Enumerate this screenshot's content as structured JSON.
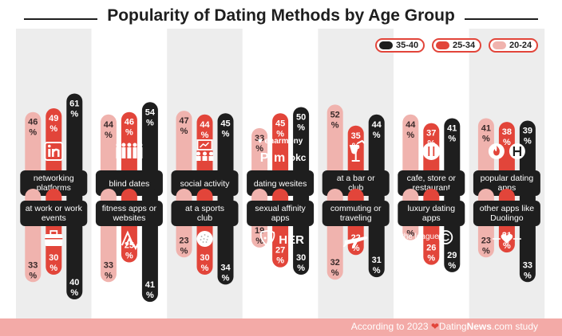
{
  "title": "Popularity of Dating Methods by Age Group",
  "legend": [
    {
      "label": "35-40",
      "color": "#1e1e1e"
    },
    {
      "label": "25-34",
      "color": "#e2453a"
    },
    {
      "label": "20-24",
      "color": "#f0b3ae"
    }
  ],
  "footer": {
    "prefix": "According to 2023",
    "brand_main": "Dating",
    "brand_bold": "News",
    "brand_suffix": ".com",
    "suffix": "study"
  },
  "chart_data": {
    "type": "bar",
    "series_names": [
      "20-24",
      "25-34",
      "35-40"
    ],
    "colors": {
      "20-24": "#f0b3ae",
      "25-34": "#e2453a",
      "35-40": "#1e1e1e"
    },
    "top_row": [
      {
        "category": "networking platforms",
        "values": [
          46,
          49,
          61
        ],
        "icons": [
          "linkedin-icon"
        ]
      },
      {
        "category": "blind dates",
        "values": [
          44,
          46,
          54
        ],
        "icons": [
          "group-people-icon"
        ]
      },
      {
        "category": "social activity",
        "values": [
          47,
          44,
          45
        ],
        "icons": [
          "presentation-icon"
        ]
      },
      {
        "category": "dating wesites",
        "values": [
          33,
          45,
          50
        ],
        "icons": [
          "eharmony-icon",
          "plenty-of-fish-icon",
          "match-icon",
          "okcupid-icon"
        ],
        "logo_text": [
          "eharmony",
          "P",
          "m",
          "okc"
        ]
      },
      {
        "category": "at a bar or club",
        "values": [
          52,
          35,
          44
        ],
        "icons": [
          "cocktail-glass-icon"
        ]
      },
      {
        "category": "cafe, store or restaurant",
        "values": [
          44,
          37,
          41
        ],
        "icons": [
          "fork-knife-icon"
        ]
      },
      {
        "category": "popular dating apps",
        "values": [
          41,
          38,
          39
        ],
        "icons": [
          "tinder-flame-icon",
          "hinge-icon"
        ]
      }
    ],
    "bottom_row": [
      {
        "category": "at work or work events",
        "values": [
          33,
          30,
          40
        ],
        "icons": [
          "briefcase-icon"
        ]
      },
      {
        "category": "fitness apps or websites",
        "values": [
          33,
          25,
          41
        ],
        "icons": [
          "strava-icon"
        ]
      },
      {
        "category": "at a sports club",
        "values": [
          23,
          30,
          34
        ],
        "icons": [
          "golf-ball-icon"
        ]
      },
      {
        "category": "sexual affinity apps",
        "values": [
          19,
          27,
          30
        ],
        "icons": [
          "grindr-icon",
          "her-icon"
        ],
        "logo_text": [
          "HER"
        ]
      },
      {
        "category": "commuting or traveling",
        "values": [
          32,
          22,
          31
        ],
        "icons": [
          "airplane-icon"
        ]
      },
      {
        "category": "luxury dating apps",
        "values": [
          16,
          26,
          29
        ],
        "icons": [
          "the-league-icon",
          "raya-icon"
        ],
        "logo_text": [
          "the league"
        ]
      },
      {
        "category": "other apps like Duolingo",
        "values": [
          23,
          21,
          33
        ],
        "icons": [
          "heart-icon"
        ]
      }
    ]
  }
}
